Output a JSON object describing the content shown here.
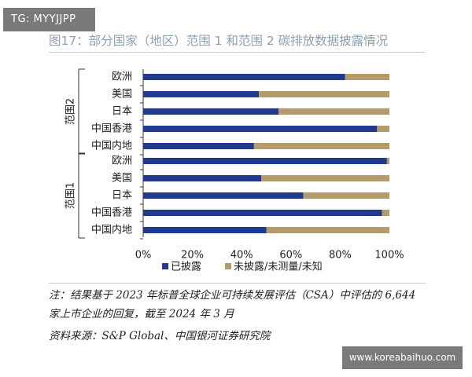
{
  "badge": "TG: MYYJJPP",
  "title": "图17：部分国家（地区）范围 1 和范围 2 碳排放数据披露情况",
  "note": "注：结果基于 2023 年标普全球企业可持续发展评估（CSA）中评估的 6,644 家上市企业的回复，截至 2024 年 3 月",
  "source": "资料来源：S&P Global、中国银河证券研究院",
  "watermark": "www.koreabaihuo.com",
  "colors": {
    "disclosed": "#1f3a8f",
    "undisclosed": "#b59a6c",
    "title": "#8aa0b8"
  },
  "chart_data": {
    "type": "bar",
    "orientation": "horizontal",
    "stacked": true,
    "percent": true,
    "groups": [
      {
        "name": "范围2",
        "categories": [
          "欧洲",
          "美国",
          "日本",
          "中国香港",
          "中国内地"
        ],
        "disclosed": [
          82,
          47,
          55,
          95,
          45
        ],
        "undisclosed": [
          18,
          53,
          45,
          5,
          55
        ]
      },
      {
        "name": "范围1",
        "categories": [
          "欧洲",
          "美国",
          "日本",
          "中国香港",
          "中国内地"
        ],
        "disclosed": [
          99,
          48,
          65,
          97,
          50
        ],
        "undisclosed": [
          1,
          52,
          35,
          3,
          50
        ]
      }
    ],
    "series": [
      {
        "name": "已披露",
        "color": "#1f3a8f"
      },
      {
        "name": "未披露/未测量/未知",
        "color": "#b59a6c"
      }
    ],
    "xticks": [
      "0%",
      "20%",
      "40%",
      "60%",
      "80%",
      "100%"
    ],
    "xlim": [
      0,
      100
    ],
    "grid": false,
    "legend": "bottom"
  }
}
